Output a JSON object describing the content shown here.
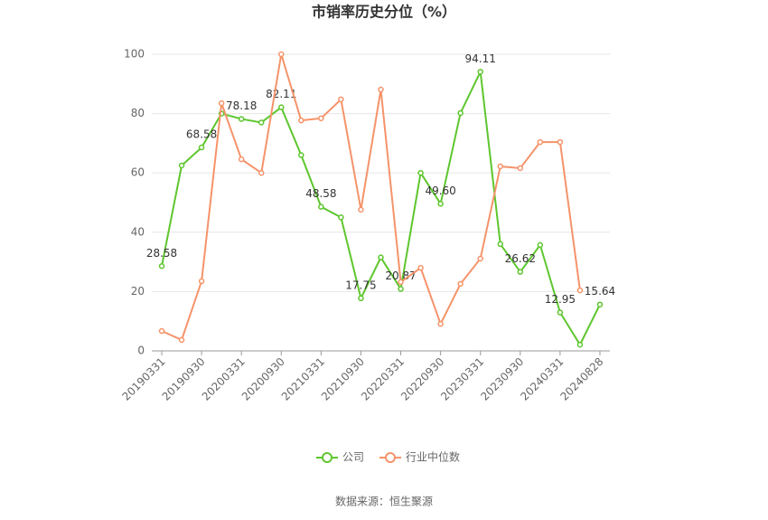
{
  "chart_data": {
    "type": "line",
    "title": "市销率历史分位（%）",
    "categories": [
      "20190331",
      null,
      "20190930",
      null,
      "20200331",
      null,
      "20200930",
      null,
      "20210331",
      null,
      "20210930",
      null,
      "20220331",
      null,
      "20220930",
      null,
      "20230331",
      null,
      "20230930",
      null,
      "20240331",
      null,
      "20240828"
    ],
    "series": [
      {
        "name": "公司",
        "color": "#5ec62e",
        "values": [
          28.58,
          62.5,
          68.58,
          80,
          78.18,
          77,
          82.11,
          66,
          48.58,
          45,
          17.75,
          31.5,
          20.87,
          60,
          49.6,
          80.2,
          94.11,
          36,
          26.62,
          35.7,
          12.95,
          2.1,
          15.64
        ],
        "value_labels": [
          "28.58",
          null,
          "68.58",
          null,
          "78.18",
          null,
          "82.11",
          null,
          "48.58",
          null,
          "17.75",
          null,
          "20.87",
          null,
          "49.60",
          null,
          "94.11",
          null,
          "26.62",
          null,
          "12.95",
          null,
          "15.64"
        ]
      },
      {
        "name": "行业中位数",
        "color": "#f5936a",
        "values": [
          6.7,
          3.7,
          23.5,
          83.5,
          64.6,
          60,
          100,
          77.7,
          78.4,
          84.8,
          47.6,
          88.1,
          23.2,
          28,
          9.1,
          22.6,
          31.1,
          62.2,
          61.6,
          70.4,
          70.4,
          20.4,
          null
        ]
      }
    ],
    "ylim": [
      0,
      100
    ],
    "yticks": [
      0,
      20,
      40,
      60,
      80,
      100
    ],
    "grid": true,
    "source": "数据来源：恒生聚源"
  }
}
